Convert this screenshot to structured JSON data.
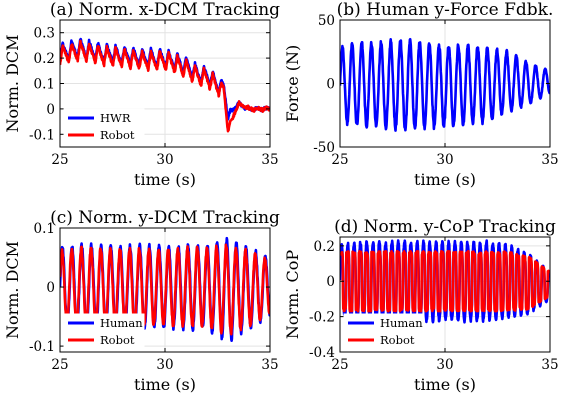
{
  "chart_data": [
    {
      "id": "a",
      "type": "line",
      "title": "(a) Norm. x-DCM Tracking",
      "xlabel": "time (s)",
      "ylabel": "Norm. DCM",
      "xlim": [
        25,
        35
      ],
      "ylim": [
        -0.15,
        0.35
      ],
      "xticks": [
        25,
        30,
        35
      ],
      "yticks": [
        -0.1,
        0,
        0.1,
        0.2,
        0.3
      ],
      "ytick_labels": [
        "-0.1",
        "0",
        "0.1",
        "0.2",
        "0.3"
      ],
      "grid": true,
      "legend_position": "bottom-left",
      "series": [
        {
          "name": "HWR",
          "color": "#0000ff",
          "x": [
            25,
            26,
            27,
            28,
            29,
            30,
            31,
            31.5,
            32,
            32.5,
            32.8,
            33,
            33.5,
            34,
            35
          ],
          "y": [
            0.22,
            0.24,
            0.22,
            0.21,
            0.2,
            0.2,
            0.17,
            0.14,
            0.13,
            0.1,
            0.09,
            -0.03,
            0.02,
            0.0,
            0.0
          ]
        },
        {
          "name": "Robot",
          "color": "#ff0000",
          "x": [
            25,
            26,
            27,
            28,
            29,
            30,
            31,
            31.5,
            32,
            32.5,
            32.8,
            33,
            33.5,
            34,
            35
          ],
          "y": [
            0.21,
            0.23,
            0.21,
            0.2,
            0.19,
            0.19,
            0.16,
            0.13,
            0.12,
            0.09,
            0.08,
            -0.08,
            0.02,
            0.0,
            0.0
          ]
        }
      ]
    },
    {
      "id": "b",
      "type": "line",
      "title": "(b) Human y-Force Fdbk.",
      "xlabel": "time (s)",
      "ylabel": "Force (N)",
      "xlim": [
        25,
        35
      ],
      "ylim": [
        -50,
        50
      ],
      "xticks": [
        25,
        30,
        35
      ],
      "yticks": [
        -50,
        0,
        50
      ],
      "ytick_labels": [
        "-50",
        "0",
        "50"
      ],
      "grid": true,
      "series": [
        {
          "name": "",
          "color": "#0000ff",
          "x": [
            25,
            26,
            27,
            28,
            29,
            30,
            31,
            32,
            33,
            34,
            35
          ],
          "y_max": [
            28,
            32,
            32,
            34,
            32,
            30,
            30,
            28,
            25,
            16,
            10
          ],
          "y_min": [
            -30,
            -33,
            -34,
            -36,
            -35,
            -34,
            -32,
            -30,
            -22,
            -16,
            -8
          ]
        }
      ]
    },
    {
      "id": "c",
      "type": "line",
      "title": "(c) Norm. y-DCM Tracking",
      "xlabel": "time (s)",
      "ylabel": "Norm. DCM",
      "xlim": [
        25,
        35
      ],
      "ylim": [
        -0.11,
        0.1
      ],
      "xticks": [
        25,
        30,
        35
      ],
      "yticks": [
        -0.1,
        0,
        0.1
      ],
      "ytick_labels": [
        "-0.1",
        "0",
        "0.1"
      ],
      "grid": true,
      "legend_position": "bottom-left",
      "series": [
        {
          "name": "Human",
          "color": "#0000ff",
          "x": [
            25,
            26,
            27,
            28,
            29,
            30,
            31,
            32,
            33,
            34,
            35
          ],
          "y_max": [
            0.065,
            0.07,
            0.07,
            0.068,
            0.07,
            0.068,
            0.07,
            0.07,
            0.08,
            0.065,
            0.05
          ],
          "y_min": [
            -0.065,
            -0.07,
            -0.07,
            -0.068,
            -0.07,
            -0.068,
            -0.07,
            -0.07,
            -0.09,
            -0.07,
            -0.05
          ]
        },
        {
          "name": "Robot",
          "color": "#ff0000",
          "x": [
            25,
            26,
            27,
            28,
            29,
            30,
            31,
            32,
            33,
            34,
            35
          ],
          "y_max": [
            0.06,
            0.065,
            0.065,
            0.063,
            0.065,
            0.063,
            0.065,
            0.065,
            0.07,
            0.06,
            0.045
          ],
          "y_min": [
            -0.06,
            -0.065,
            -0.065,
            -0.063,
            -0.065,
            -0.063,
            -0.065,
            -0.065,
            -0.08,
            -0.065,
            -0.045
          ]
        }
      ]
    },
    {
      "id": "d",
      "type": "line",
      "title": "(d) Norm. y-CoP Tracking",
      "xlabel": "time (s)",
      "ylabel": "Norm. CoP",
      "xlim": [
        25,
        35
      ],
      "ylim": [
        -0.4,
        0.25
      ],
      "xticks": [
        25,
        30,
        35
      ],
      "yticks": [
        -0.4,
        -0.2,
        0,
        0.2
      ],
      "ytick_labels": [
        "-0.4",
        "-0.2",
        "0",
        "0.2"
      ],
      "grid": true,
      "legend_position": "bottom-left",
      "series": [
        {
          "name": "Human",
          "color": "#0000ff",
          "x": [
            25,
            26,
            27,
            28,
            29,
            30,
            31,
            32,
            33,
            34,
            35
          ],
          "y_max": [
            0.2,
            0.22,
            0.22,
            0.22,
            0.22,
            0.22,
            0.22,
            0.22,
            0.2,
            0.15,
            0.05
          ],
          "y_min": [
            -0.2,
            -0.22,
            -0.22,
            -0.22,
            -0.22,
            -0.22,
            -0.22,
            -0.22,
            -0.2,
            -0.18,
            -0.1
          ]
        },
        {
          "name": "Robot",
          "color": "#ff0000",
          "x": [
            25,
            26,
            27,
            28,
            29,
            30,
            31,
            32,
            33,
            34,
            35
          ],
          "y_max": [
            0.16,
            0.16,
            0.16,
            0.16,
            0.16,
            0.16,
            0.16,
            0.16,
            0.16,
            0.13,
            0.05
          ],
          "y_min": [
            -0.16,
            -0.16,
            -0.16,
            -0.16,
            -0.16,
            -0.16,
            -0.16,
            -0.16,
            -0.16,
            -0.15,
            -0.08
          ]
        }
      ]
    }
  ]
}
